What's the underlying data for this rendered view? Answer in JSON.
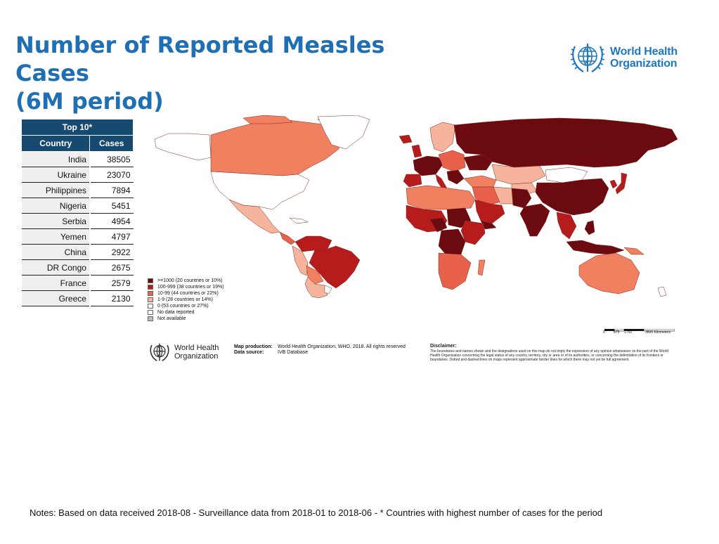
{
  "header": {
    "title_line1": "Number of Reported Measles Cases",
    "title_line2": "(6M period)"
  },
  "who_logo": {
    "line1": "World Health",
    "line2": "Organization",
    "icon": "who-emblem-icon",
    "color": "#1f76c2"
  },
  "top10": {
    "title": "Top 10*",
    "col_country": "Country",
    "col_cases": "Cases",
    "rows": [
      {
        "country": "India",
        "cases": "38505"
      },
      {
        "country": "Ukraine",
        "cases": "23070"
      },
      {
        "country": "Philippines",
        "cases": "7894"
      },
      {
        "country": "Nigeria",
        "cases": "5451"
      },
      {
        "country": "Serbia",
        "cases": "4954"
      },
      {
        "country": "Yemen",
        "cases": "4797"
      },
      {
        "country": "China",
        "cases": "2922"
      },
      {
        "country": "DR Congo",
        "cases": "2675"
      },
      {
        "country": "France",
        "cases": "2579"
      },
      {
        "country": "Greece",
        "cases": "2130"
      }
    ]
  },
  "legend": {
    "items": [
      {
        "label": ">=1000 (20 countries or 10%)",
        "color": "#6b0a0f"
      },
      {
        "label": "100-999 (38 countries or 19%)",
        "color": "#b71c1c"
      },
      {
        "label": "10-99 (44 countries or 22%)",
        "color": "#e8614a"
      },
      {
        "label": "1-9 (28 countries or 14%)",
        "color": "#f6b49c"
      },
      {
        "label": "0 (53 countries or 27%)",
        "color": "#ffffff"
      },
      {
        "label": "No data reported",
        "color": "#ffffff"
      },
      {
        "label": "Not available",
        "color": "#bdbdbd"
      }
    ]
  },
  "scale": {
    "labels": [
      "0",
      "875",
      "1750",
      "3500 Kilometers"
    ]
  },
  "credits": {
    "production_label": "Map production:",
    "production_value": "World Health Organization, WHO, 2018. All rights reserved",
    "source_label": "Data source:",
    "source_value": "IVB Database"
  },
  "disclaimer": {
    "heading": "Disclaimer:",
    "text": "The boundaries and names shown and the designations used on this map do not imply the expression of any opinion whatsoever on the part of the World Health Organization concerning the legal status of any country, territory, city or area or of its authorities, or concerning the delimitation of its frontiers or boundaries. Dotted and dashed lines on maps represent approximate border lines for which there may not yet be full agreement."
  },
  "notes": "Notes: Based on data received 2018-08 - Surveillance data from 2018-01 to 2018-06 - * Countries with highest number of cases for the period"
}
